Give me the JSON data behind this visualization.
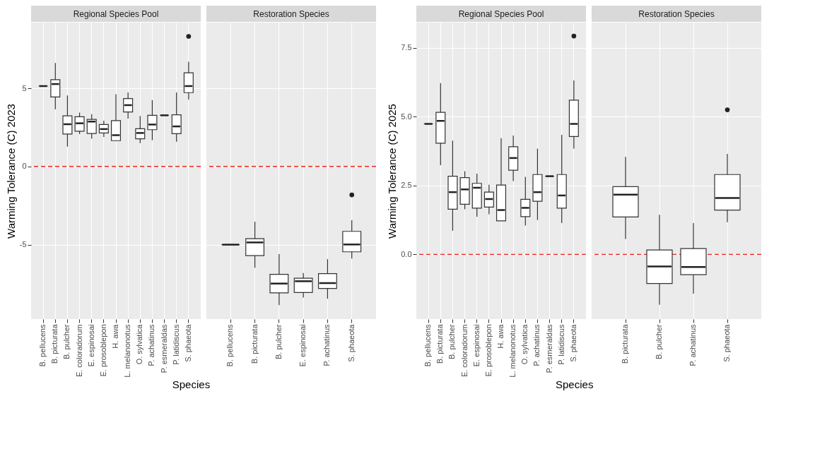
{
  "chart_data": [
    {
      "type": "box",
      "title": "Regional Species Pool",
      "ylabel": "Warming Tolerance (C) 2023",
      "xlabel": "Species",
      "categories": [
        "B. pellucens",
        "B. picturata",
        "B. pulcher",
        "E. coloradorum",
        "E. espinosai",
        "E. prosoblepon",
        "H. awa",
        "L. melanonotus",
        "O. sylvatica",
        "P. achatinus",
        "P. esmeraldas",
        "P. latidiscus",
        "S. phaeota"
      ],
      "boxes": [
        {
          "low": 5.14,
          "q1": 5.14,
          "median": 5.14,
          "q3": 5.14,
          "high": 5.14
        },
        {
          "low": 3.66,
          "q1": 4.44,
          "median": 5.27,
          "q3": 5.55,
          "high": 6.62
        },
        {
          "low": 1.27,
          "q1": 2.07,
          "median": 2.7,
          "q3": 3.24,
          "high": 4.54
        },
        {
          "low": 2.07,
          "q1": 2.25,
          "median": 2.76,
          "q3": 3.18,
          "high": 3.44
        },
        {
          "low": 1.77,
          "q1": 2.11,
          "median": 2.87,
          "q3": 3.01,
          "high": 3.34
        },
        {
          "low": 1.89,
          "q1": 2.14,
          "median": 2.39,
          "q3": 2.68,
          "high": 2.92
        },
        {
          "low": 1.65,
          "q1": 1.65,
          "median": 2.0,
          "q3": 2.93,
          "high": 4.62
        },
        {
          "low": 3.06,
          "q1": 3.48,
          "median": 3.92,
          "q3": 4.34,
          "high": 4.73
        },
        {
          "low": 1.49,
          "q1": 1.77,
          "median": 2.14,
          "q3": 2.41,
          "high": 3.23
        },
        {
          "low": 1.68,
          "q1": 2.35,
          "median": 2.68,
          "q3": 3.27,
          "high": 4.24
        },
        {
          "low": 3.27,
          "q1": 3.27,
          "median": 3.27,
          "q3": 3.27,
          "high": 3.27
        },
        {
          "low": 1.58,
          "q1": 2.1,
          "median": 2.56,
          "q3": 3.3,
          "high": 4.73
        },
        {
          "low": 4.28,
          "q1": 4.72,
          "median": 5.14,
          "q3": 5.99,
          "high": 6.69,
          "outliers": [
            8.32
          ]
        }
      ],
      "ylim": [
        -9.76,
        9.2
      ],
      "yticks": [
        -5,
        0,
        5
      ],
      "grid": true,
      "ref_lines": [
        {
          "axis": "y",
          "value": 0,
          "color": "#e8231f",
          "line_style": "dashed"
        }
      ]
    },
    {
      "type": "box",
      "title": "Restoration Species",
      "categories": [
        "B. pellucens",
        "B. picturata",
        "B. pulcher",
        "E. espinosai",
        "P. achatinus",
        "S. phaeota"
      ],
      "boxes": [
        {
          "low": -5.0,
          "q1": -5.0,
          "median": -5.0,
          "q3": -5.0,
          "high": -5.0
        },
        {
          "low": -6.48,
          "q1": -5.7,
          "median": -4.86,
          "q3": -4.62,
          "high": -3.54
        },
        {
          "low": -8.87,
          "q1": -8.08,
          "median": -7.49,
          "q3": -6.9,
          "high": -5.61
        },
        {
          "low": -8.38,
          "q1": -8.06,
          "median": -7.34,
          "q3": -7.15,
          "high": -6.82
        },
        {
          "low": -8.46,
          "q1": -7.8,
          "median": -7.46,
          "q3": -6.85,
          "high": -5.93
        },
        {
          "low": -5.89,
          "q1": -5.46,
          "median": -4.99,
          "q3": -4.15,
          "high": -3.44,
          "outliers": [
            -1.82
          ]
        }
      ],
      "ylim": [
        -9.76,
        9.2
      ],
      "yticks": [
        -5,
        0,
        5
      ],
      "tick_labels": "x",
      "grid": true,
      "ref_lines": [
        {
          "axis": "y",
          "value": 0,
          "color": "#e8231f",
          "line_style": "dashed"
        }
      ]
    },
    {
      "type": "box",
      "title": "Regional Species Pool",
      "ylabel": "Warming Tolerance (C) 2025",
      "xlabel": "Species",
      "categories": [
        "B. pellucens",
        "B. picturata",
        "B. pulcher",
        "E. coloradorum",
        "E. espinosai",
        "E. prosoblepon",
        "H. awa",
        "L. melanonotus",
        "O. sylvatica",
        "P. achatinus",
        "P. esmeraldas",
        "P. latidiscus",
        "S. phaeota"
      ],
      "boxes": [
        {
          "low": 4.74,
          "q1": 4.74,
          "median": 4.74,
          "q3": 4.74,
          "high": 4.74
        },
        {
          "low": 3.24,
          "q1": 4.04,
          "median": 4.85,
          "q3": 5.16,
          "high": 6.22
        },
        {
          "low": 0.86,
          "q1": 1.64,
          "median": 2.26,
          "q3": 2.84,
          "high": 4.13
        },
        {
          "low": 1.64,
          "q1": 1.82,
          "median": 2.36,
          "q3": 2.79,
          "high": 3.02
        },
        {
          "low": 1.37,
          "q1": 1.68,
          "median": 2.42,
          "q3": 2.58,
          "high": 2.93
        },
        {
          "low": 1.46,
          "q1": 1.72,
          "median": 2.01,
          "q3": 2.26,
          "high": 2.53
        },
        {
          "low": 1.22,
          "q1": 1.22,
          "median": 1.61,
          "q3": 2.52,
          "high": 4.22
        },
        {
          "low": 2.66,
          "q1": 3.06,
          "median": 3.5,
          "q3": 3.91,
          "high": 4.32
        },
        {
          "low": 1.05,
          "q1": 1.37,
          "median": 1.69,
          "q3": 2.0,
          "high": 2.82
        },
        {
          "low": 1.25,
          "q1": 1.93,
          "median": 2.26,
          "q3": 2.9,
          "high": 3.84
        },
        {
          "low": 2.84,
          "q1": 2.84,
          "median": 2.84,
          "q3": 2.84,
          "high": 2.84
        },
        {
          "low": 1.14,
          "q1": 1.68,
          "median": 2.14,
          "q3": 2.9,
          "high": 4.34
        },
        {
          "low": 3.84,
          "q1": 4.28,
          "median": 4.74,
          "q3": 5.6,
          "high": 6.32,
          "outliers": [
            7.93
          ]
        }
      ],
      "ylim": [
        -2.35,
        8.42
      ],
      "yticks": [
        {
          "value": 0,
          "label": "0.0"
        },
        2.5,
        {
          "value": 5,
          "label": "5.0"
        },
        7.5
      ],
      "grid": true,
      "ref_lines": [
        {
          "axis": "y",
          "value": 0,
          "color": "#e8231f",
          "line_style": "dashed"
        }
      ]
    },
    {
      "type": "box",
      "title": "Restoration Species",
      "categories": [
        "B. picturata",
        "B. pulcher",
        "P. achatinus",
        "S. phaeota"
      ],
      "boxes": [
        {
          "low": 0.56,
          "q1": 1.36,
          "median": 2.17,
          "q3": 2.46,
          "high": 3.54
        },
        {
          "low": -1.83,
          "q1": -1.06,
          "median": -0.44,
          "q3": 0.16,
          "high": 1.44
        },
        {
          "low": -1.43,
          "q1": -0.74,
          "median": -0.46,
          "q3": 0.21,
          "high": 1.14
        },
        {
          "low": 1.17,
          "q1": 1.61,
          "median": 2.05,
          "q3": 2.9,
          "high": 3.65,
          "outliers": [
            5.25
          ]
        }
      ],
      "ylim": [
        -2.35,
        8.42
      ],
      "yticks": [
        0,
        2.5,
        5,
        7.5
      ],
      "tick_labels": "x",
      "grid": true,
      "ref_lines": [
        {
          "axis": "y",
          "value": 0,
          "color": "#e8231f",
          "line_style": "dashed"
        }
      ]
    }
  ]
}
